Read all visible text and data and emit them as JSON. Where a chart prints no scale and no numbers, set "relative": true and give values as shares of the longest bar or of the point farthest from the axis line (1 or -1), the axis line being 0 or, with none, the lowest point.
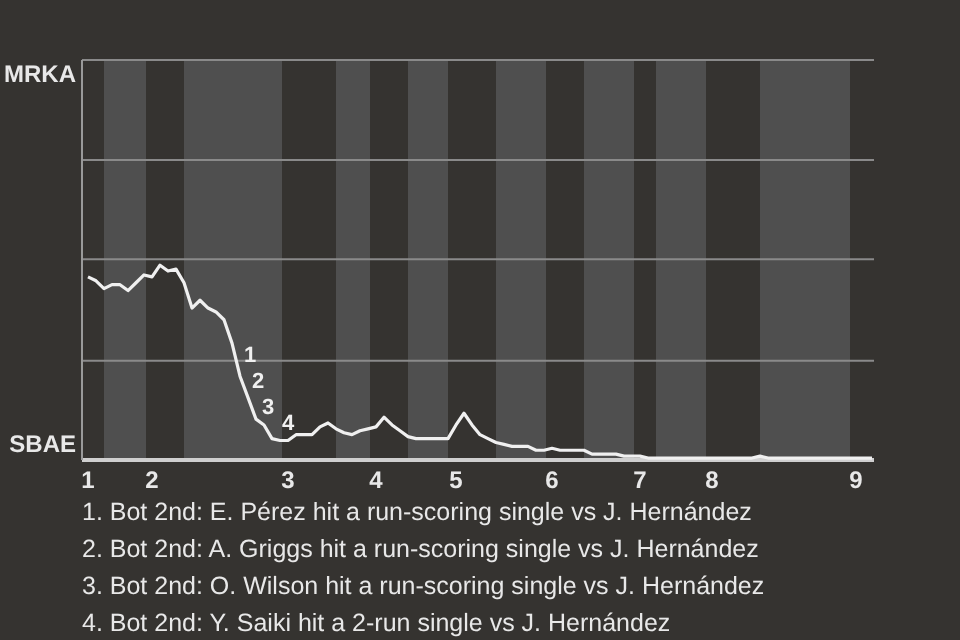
{
  "chart_data": {
    "type": "line",
    "relative": true,
    "categories": [
      "1",
      null,
      null,
      null,
      null,
      null,
      null,
      null,
      "2",
      null,
      null,
      null,
      null,
      null,
      null,
      null,
      null,
      null,
      null,
      null,
      null,
      null,
      null,
      null,
      null,
      "3",
      null,
      null,
      null,
      null,
      null,
      null,
      null,
      null,
      null,
      null,
      "4",
      null,
      null,
      null,
      null,
      null,
      null,
      null,
      null,
      null,
      "5",
      null,
      null,
      null,
      null,
      null,
      null,
      null,
      null,
      null,
      null,
      null,
      "6",
      null,
      null,
      null,
      null,
      null,
      null,
      null,
      null,
      null,
      null,
      "7",
      null,
      null,
      null,
      null,
      null,
      null,
      null,
      null,
      "8",
      null,
      null,
      null,
      null,
      null,
      null,
      null,
      null,
      null,
      null,
      null,
      null,
      null,
      null,
      null,
      null,
      null,
      "9",
      null,
      null
    ],
    "marker": "none",
    "ref_lines": [
      {
        "axis": "y",
        "value": 0.51,
        "color": "#8a8a8a"
      },
      {
        "axis": "y",
        "value": 1.03,
        "color": "#8a8a8a"
      },
      {
        "axis": "y",
        "value": 1.54,
        "color": "#8a8a8a"
      }
    ],
    "series": [
      {
        "color": "#f0f0f0",
        "values": [
          0.94,
          0.92,
          0.88,
          0.9,
          0.9,
          0.87,
          0.91,
          0.95,
          0.94,
          1,
          0.97,
          0.98,
          0.91,
          0.78,
          0.82,
          0.78,
          0.76,
          0.72,
          0.6,
          0.43,
          0.32,
          0.21,
          0.18,
          0.11,
          0.1,
          0.1,
          0.13,
          0.13,
          0.13,
          0.17,
          0.19,
          0.16,
          0.14,
          0.13,
          0.15,
          0.16,
          0.17,
          0.22,
          0.18,
          0.15,
          0.12,
          0.11,
          0.11,
          0.11,
          0.11,
          0.11,
          0.18,
          0.24,
          0.18,
          0.13,
          0.11,
          0.09,
          0.08,
          0.07,
          0.07,
          0.07,
          0.05,
          0.05,
          0.06,
          0.05,
          0.05,
          0.05,
          0.05,
          0.03,
          0.03,
          0.03,
          0.03,
          0.02,
          0.02,
          0.02,
          0.01,
          0.01,
          0.01,
          0.01,
          0.01,
          0.01,
          0.01,
          0.01,
          0.01,
          0.01,
          0.01,
          0.01,
          0.01,
          0.01,
          0.02,
          0.01,
          0.01,
          0.01,
          0.01,
          0.01,
          0.01,
          0.01,
          0.01,
          0.01,
          0.01,
          0.01,
          0.01,
          0.01,
          0.01
        ]
      }
    ],
    "annotations": [
      "MRKA",
      "SBAE",
      "1",
      "2",
      "3",
      "4",
      "1. Bot 2nd: E. Pérez hit a run-scoring single vs J. Hernández",
      "2. Bot 2nd: A. Griggs hit a run-scoring single vs J. Hernández",
      "3. Bot 2nd: O. Wilson hit a run-scoring single vs J. Hernández",
      "4. Bot 2nd: Y. Saiki hit a 2-run single vs J. Hernández"
    ]
  }
}
